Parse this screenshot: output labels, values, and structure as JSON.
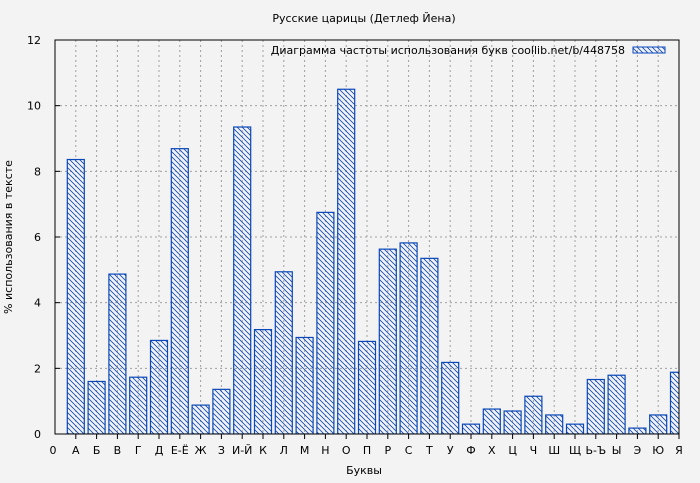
{
  "chart_data": {
    "type": "bar",
    "title": "Русские царицы (Детлеф Йена)",
    "xlabel": "Буквы",
    "ylabel": "% использования в тексте",
    "ylim": [
      0,
      12
    ],
    "yticks": [
      "0",
      "2",
      "4",
      "6",
      "8",
      "10",
      "12"
    ],
    "grid": true,
    "legend": {
      "label": "Диаграмма частоты использования букв  coollib.net/b/448758",
      "position": "top-right"
    },
    "axis_start_label": "0",
    "categories": [
      "А",
      "Б",
      "В",
      "Г",
      "Д",
      "Е-Ё",
      "Ж",
      "З",
      "И-Й",
      "К",
      "Л",
      "М",
      "Н",
      "О",
      "П",
      "Р",
      "С",
      "Т",
      "У",
      "Ф",
      "Х",
      "Ц",
      "Ч",
      "Ш",
      "Щ",
      "Ь-Ъ",
      "Ы",
      "Э",
      "Ю",
      "Я"
    ],
    "values": [
      8.36,
      1.6,
      4.87,
      1.73,
      2.85,
      8.69,
      0.88,
      1.36,
      9.35,
      3.18,
      4.94,
      2.94,
      6.75,
      10.5,
      2.82,
      5.63,
      5.82,
      5.35,
      2.18,
      0.3,
      0.76,
      0.7,
      1.15,
      0.58,
      0.3,
      1.66,
      1.79,
      0.18,
      0.58,
      1.88
    ],
    "colors": {
      "bar_stroke": "#0a47b8",
      "background": "#f3f3f3",
      "grid": "#a0a0a0"
    }
  }
}
